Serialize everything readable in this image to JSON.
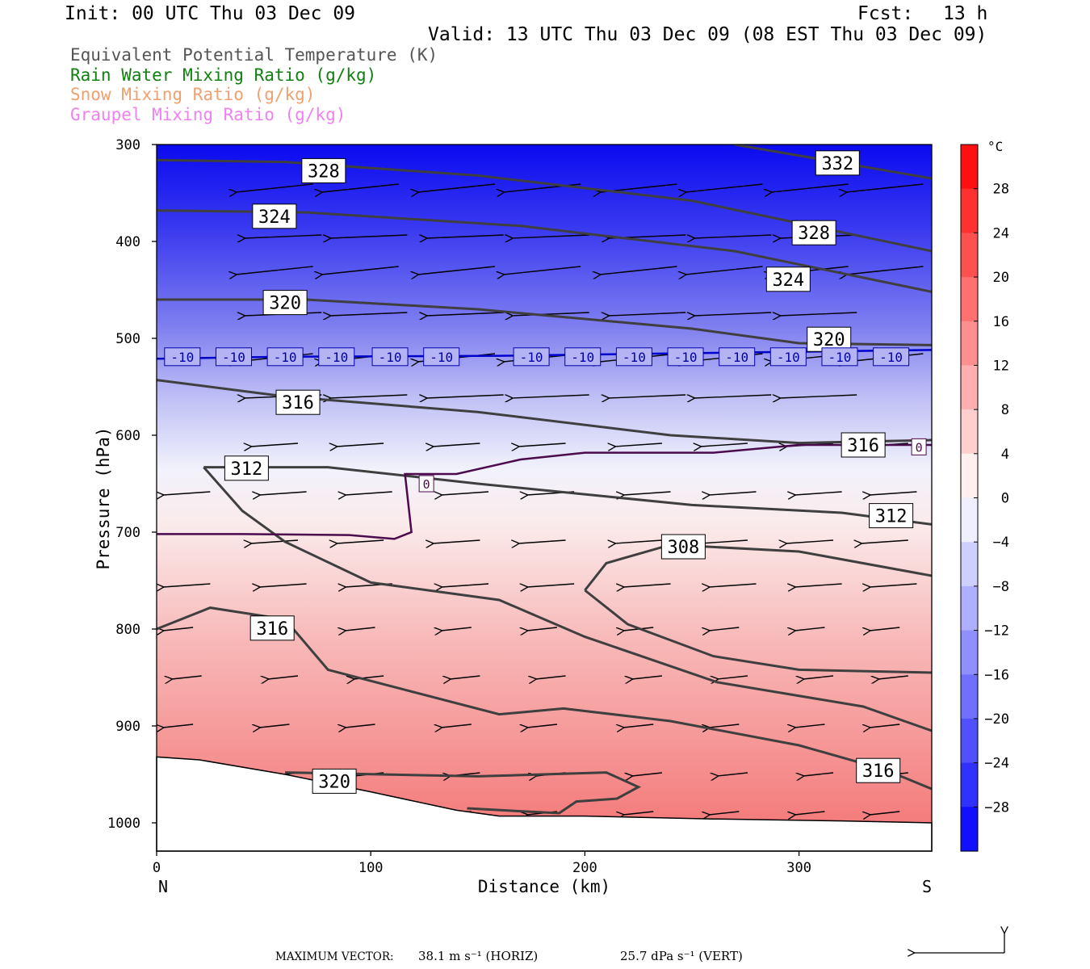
{
  "header": {
    "init": "Init: 00 UTC Thu 03 Dec 09",
    "fcst_label": "Fcst:",
    "fcst_value": "13 h",
    "valid": "Valid: 13 UTC Thu 03 Dec 09 (08 EST Thu 03 Dec 09)"
  },
  "legend": [
    {
      "text": "Equivalent Potential Temperature (K)",
      "color": "#555555"
    },
    {
      "text": "Rain Water Mixing Ratio (g/kg)",
      "color": "#118011"
    },
    {
      "text": "Snow Mixing Ratio (g/kg)",
      "color": "#f0a070"
    },
    {
      "text": "Graupel Mixing Ratio (g/kg)",
      "color": "#ee82ee"
    }
  ],
  "chart_data": {
    "type": "cross-section",
    "xlabel": "Distance (km)",
    "ylabel": "Pressure (hPa)",
    "xlim": [
      0,
      362
    ],
    "ylim": [
      1030,
      300
    ],
    "xticks": [
      0,
      100,
      200,
      300
    ],
    "yticks": [
      300,
      400,
      500,
      600,
      700,
      800,
      900,
      1000
    ],
    "x_end_labels": {
      "left": "N",
      "right": "S"
    },
    "colorbar": {
      "unit": "°C",
      "tick_values": [
        28,
        24,
        20,
        16,
        12,
        8,
        4,
        0,
        -4,
        -8,
        -12,
        -16,
        -20,
        -24,
        -28
      ],
      "range": [
        -32,
        32
      ],
      "cold_color": "#0000ff",
      "warm_color": "#ff0000"
    },
    "theta_e_contours": [
      {
        "value": 332,
        "points": [
          [
            270,
            300
          ],
          [
            362,
            335
          ]
        ]
      },
      {
        "value": 328,
        "points": [
          [
            0,
            316
          ],
          [
            60,
            318
          ],
          [
            150,
            332
          ],
          [
            250,
            358
          ],
          [
            362,
            410
          ]
        ]
      },
      {
        "value": 324,
        "points": [
          [
            0,
            368
          ],
          [
            70,
            370
          ],
          [
            170,
            384
          ],
          [
            270,
            410
          ],
          [
            362,
            452
          ]
        ]
      },
      {
        "value": 320,
        "points": [
          [
            0,
            460
          ],
          [
            70,
            460
          ],
          [
            150,
            470
          ],
          [
            250,
            490
          ],
          [
            300,
            505
          ],
          [
            362,
            507
          ]
        ]
      },
      {
        "value": 316,
        "points": [
          [
            0,
            543
          ],
          [
            60,
            560
          ],
          [
            150,
            576
          ],
          [
            240,
            600
          ],
          [
            300,
            608
          ],
          [
            362,
            605
          ]
        ]
      },
      {
        "value": 312,
        "points": [
          [
            22,
            633
          ],
          [
            80,
            633
          ],
          [
            150,
            650
          ],
          [
            250,
            672
          ],
          [
            320,
            680
          ],
          [
            362,
            692
          ]
        ]
      },
      {
        "value": 312,
        "points": [
          [
            22,
            633
          ],
          [
            40,
            678
          ],
          [
            60,
            710
          ],
          [
            100,
            752
          ],
          [
            160,
            770
          ],
          [
            200,
            808
          ],
          [
            262,
            855
          ],
          [
            330,
            880
          ],
          [
            362,
            905
          ]
        ]
      },
      {
        "value": 308,
        "points": [
          [
            200,
            760
          ],
          [
            210,
            732
          ],
          [
            240,
            713
          ],
          [
            300,
            720
          ],
          [
            362,
            745
          ]
        ]
      },
      {
        "value": 308,
        "points": [
          [
            200,
            760
          ],
          [
            220,
            795
          ],
          [
            260,
            828
          ],
          [
            300,
            842
          ],
          [
            362,
            845
          ]
        ]
      },
      {
        "value": 316,
        "points": [
          [
            0,
            800
          ],
          [
            25,
            778
          ],
          [
            60,
            790
          ],
          [
            80,
            842
          ],
          [
            160,
            888
          ],
          [
            190,
            882
          ],
          [
            240,
            895
          ],
          [
            300,
            920
          ],
          [
            340,
            945
          ],
          [
            362,
            965
          ]
        ]
      },
      {
        "value": 320,
        "points": [
          [
            60,
            948
          ],
          [
            150,
            952
          ],
          [
            210,
            948
          ],
          [
            225,
            963
          ],
          [
            215,
            975
          ],
          [
            196,
            978
          ],
          [
            188,
            990
          ],
          [
            170,
            988
          ],
          [
            145,
            985
          ]
        ]
      }
    ],
    "theta_e_labels": [
      {
        "value": "328",
        "x": 78,
        "y": 327
      },
      {
        "value": "324",
        "x": 55,
        "y": 374
      },
      {
        "value": "320",
        "x": 60,
        "y": 463
      },
      {
        "value": "316",
        "x": 66,
        "y": 566
      },
      {
        "value": "312",
        "x": 42,
        "y": 634
      },
      {
        "value": "316",
        "x": 54,
        "y": 799
      },
      {
        "value": "320",
        "x": 83,
        "y": 957
      },
      {
        "value": "332",
        "x": 318,
        "y": 319
      },
      {
        "value": "328",
        "x": 307,
        "y": 391
      },
      {
        "value": "324",
        "x": 295,
        "y": 439
      },
      {
        "value": "320",
        "x": 314,
        "y": 501
      },
      {
        "value": "316",
        "x": 330,
        "y": 610
      },
      {
        "value": "312",
        "x": 343,
        "y": 683
      },
      {
        "value": "308",
        "x": 246,
        "y": 715
      },
      {
        "value": "316",
        "x": 337,
        "y": 946
      }
    ],
    "isotherm_minus10": {
      "label": "-10",
      "points": [
        [
          0,
          521
        ],
        [
          60,
          519
        ],
        [
          160,
          518
        ],
        [
          260,
          515
        ],
        [
          362,
          512
        ]
      ],
      "label_x": [
        12,
        36,
        60,
        84,
        109,
        133,
        175,
        199,
        223,
        247,
        271,
        295,
        319,
        343
      ]
    },
    "isotherm_zero": {
      "label": "0",
      "points": [
        [
          0,
          702
        ],
        [
          40,
          702
        ],
        [
          90,
          703
        ],
        [
          111,
          707
        ],
        [
          119,
          700
        ],
        [
          116,
          640
        ],
        [
          140,
          640
        ],
        [
          170,
          625
        ],
        [
          200,
          618
        ],
        [
          260,
          618
        ],
        [
          300,
          610
        ],
        [
          362,
          610
        ]
      ],
      "label_positions": [
        [
          126,
          650
        ],
        [
          356,
          612
        ]
      ]
    },
    "terrain": [
      [
        0,
        932
      ],
      [
        20,
        935
      ],
      [
        60,
        950
      ],
      [
        100,
        968
      ],
      [
        140,
        987
      ],
      [
        160,
        993
      ],
      [
        200,
        993
      ],
      [
        260,
        996
      ],
      [
        320,
        998
      ],
      [
        362,
        1000
      ]
    ],
    "vectors_horizontal_speed_max": "38.1 m s⁻¹ (HORIZ)",
    "vectors_vertical_speed_max": "25.7 dPa s⁻¹ (VERT)"
  },
  "footer": {
    "label": "MAXIMUM VECTOR:",
    "horiz": "38.1 m s⁻¹ (HORIZ)",
    "vert": "25.7 dPa s⁻¹ (VERT)"
  }
}
